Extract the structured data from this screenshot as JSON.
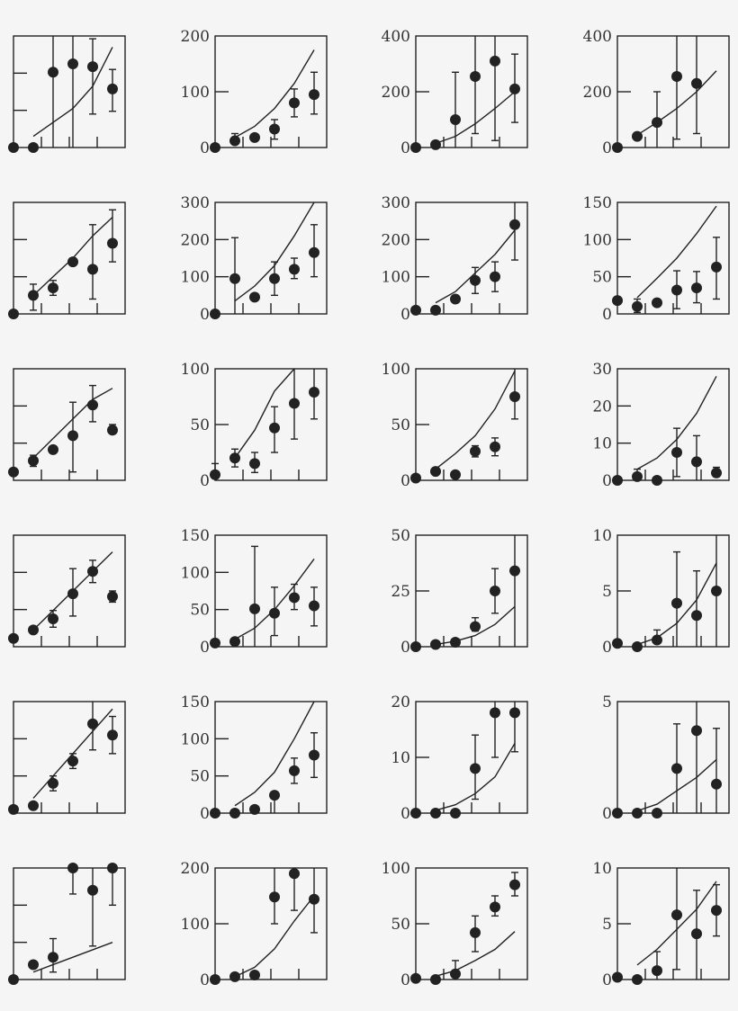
{
  "figure": {
    "rows": 6,
    "cols": 4,
    "background": "#f5f5f5",
    "ink": "#222222"
  },
  "chart_data": [
    {
      "type": "scatter",
      "row": 0,
      "col": 0,
      "yticks_labels": [],
      "ylim": [
        0,
        4
      ],
      "x": [
        0,
        1,
        2,
        3,
        4,
        5
      ],
      "points": [
        0,
        0,
        2.7,
        3.0,
        2.9,
        2.1
      ],
      "err_low": [
        0,
        0,
        0,
        0,
        1.2,
        1.3
      ],
      "err_high": [
        0,
        0,
        4,
        4,
        3.9,
        2.8
      ],
      "curve": [
        null,
        0.4,
        0.9,
        1.4,
        2.2,
        3.6
      ]
    },
    {
      "type": "scatter",
      "row": 0,
      "col": 1,
      "yticks_labels": [
        "0",
        "100",
        "200"
      ],
      "ylim": [
        0,
        200
      ],
      "x": [
        0,
        1,
        2,
        3,
        4,
        5
      ],
      "points": [
        0,
        12,
        18,
        33,
        80,
        95
      ],
      "err_low": [
        0,
        8,
        18,
        15,
        55,
        60
      ],
      "err_high": [
        0,
        25,
        18,
        50,
        105,
        135
      ],
      "curve": [
        null,
        18,
        38,
        70,
        115,
        175
      ]
    },
    {
      "type": "scatter",
      "row": 0,
      "col": 2,
      "yticks_labels": [
        "0",
        "200",
        "400"
      ],
      "ylim": [
        0,
        400
      ],
      "x": [
        0,
        1,
        2,
        3,
        4,
        5
      ],
      "points": [
        0,
        10,
        100,
        255,
        310,
        210
      ],
      "err_low": [
        0,
        10,
        0,
        50,
        25,
        90
      ],
      "err_high": [
        0,
        10,
        270,
        400,
        400,
        335
      ],
      "curve": [
        null,
        15,
        40,
        85,
        140,
        200
      ]
    },
    {
      "type": "scatter",
      "row": 0,
      "col": 3,
      "yticks_labels": [
        "0",
        "200",
        "400"
      ],
      "ylim": [
        0,
        400
      ],
      "x": [
        0,
        1,
        2,
        3,
        4,
        5
      ],
      "points": [
        0,
        40,
        90,
        255,
        230,
        null
      ],
      "err_low": [
        0,
        40,
        0,
        30,
        50,
        null
      ],
      "err_high": [
        0,
        40,
        200,
        400,
        400,
        null
      ],
      "curve": [
        null,
        45,
        90,
        140,
        200,
        275
      ]
    },
    {
      "type": "scatter",
      "row": 1,
      "col": 0,
      "yticks_labels": [],
      "ylim": [
        0,
        3
      ],
      "x": [
        0,
        1,
        2,
        3,
        4,
        5
      ],
      "points": [
        0,
        0.5,
        0.7,
        1.4,
        1.2,
        1.9
      ],
      "err_low": [
        0,
        0.1,
        0.5,
        1.4,
        0.4,
        1.4
      ],
      "err_high": [
        0,
        0.8,
        0.9,
        1.4,
        2.4,
        2.8
      ],
      "curve": [
        null,
        0.5,
        1.0,
        1.5,
        2.1,
        2.6
      ]
    },
    {
      "type": "scatter",
      "row": 1,
      "col": 1,
      "yticks_labels": [
        "0",
        "100",
        "200",
        "300"
      ],
      "ylim": [
        0,
        300
      ],
      "x": [
        0,
        1,
        2,
        3,
        4,
        5
      ],
      "points": [
        0,
        95,
        45,
        95,
        120,
        165
      ],
      "err_low": [
        0,
        0,
        45,
        50,
        95,
        100
      ],
      "err_high": [
        0,
        205,
        45,
        140,
        150,
        240
      ],
      "curve": [
        null,
        35,
        75,
        130,
        210,
        300
      ]
    },
    {
      "type": "scatter",
      "row": 1,
      "col": 2,
      "yticks_labels": [
        "0",
        "100",
        "200",
        "300"
      ],
      "ylim": [
        0,
        300
      ],
      "x": [
        0,
        1,
        2,
        3,
        4,
        5
      ],
      "points": [
        10,
        10,
        40,
        90,
        100,
        240
      ],
      "err_low": [
        10,
        10,
        40,
        55,
        60,
        145
      ],
      "err_high": [
        10,
        10,
        40,
        125,
        140,
        300
      ],
      "curve": [
        null,
        30,
        60,
        110,
        160,
        225
      ]
    },
    {
      "type": "scatter",
      "row": 1,
      "col": 3,
      "yticks_labels": [
        "0",
        "50",
        "100",
        "150"
      ],
      "ylim": [
        0,
        150
      ],
      "x": [
        0,
        1,
        2,
        3,
        4,
        5
      ],
      "points": [
        18,
        10,
        15,
        32,
        35,
        63
      ],
      "err_low": [
        18,
        2,
        15,
        7,
        15,
        20
      ],
      "err_high": [
        18,
        20,
        15,
        58,
        57,
        103
      ],
      "curve": [
        null,
        22,
        48,
        75,
        108,
        145
      ]
    },
    {
      "type": "scatter",
      "row": 2,
      "col": 0,
      "yticks_labels": [],
      "ylim": [
        0,
        4
      ],
      "x": [
        0,
        1,
        2,
        3,
        4,
        5
      ],
      "points": [
        0.3,
        0.7,
        1.1,
        1.6,
        2.7,
        1.8
      ],
      "err_low": [
        0.3,
        0.5,
        1.1,
        0.3,
        2.1,
        1.7
      ],
      "err_high": [
        0.3,
        0.9,
        1.1,
        2.8,
        3.4,
        2.0
      ],
      "curve": [
        null,
        0.8,
        1.5,
        2.2,
        2.9,
        3.3
      ]
    },
    {
      "type": "scatter",
      "row": 2,
      "col": 1,
      "yticks_labels": [
        "0",
        "50",
        "100"
      ],
      "ylim": [
        0,
        100
      ],
      "x": [
        0,
        1,
        2,
        3,
        4,
        5
      ],
      "points": [
        5,
        20,
        15,
        47,
        69,
        79
      ],
      "err_low": [
        0,
        12,
        7,
        25,
        37,
        55
      ],
      "err_high": [
        15,
        28,
        25,
        66,
        100,
        100
      ],
      "curve": [
        null,
        20,
        45,
        80,
        110,
        null
      ]
    },
    {
      "type": "scatter",
      "row": 2,
      "col": 2,
      "yticks_labels": [
        "0",
        "50",
        "100"
      ],
      "ylim": [
        0,
        100
      ],
      "x": [
        0,
        1,
        2,
        3,
        4,
        5
      ],
      "points": [
        2,
        8,
        5,
        26,
        30,
        75
      ],
      "err_low": [
        2,
        8,
        5,
        21,
        22,
        55
      ],
      "err_high": [
        2,
        8,
        5,
        31,
        38,
        100
      ],
      "curve": [
        null,
        10,
        24,
        40,
        64,
        98
      ]
    },
    {
      "type": "scatter",
      "row": 2,
      "col": 3,
      "yticks_labels": [
        "0",
        "10",
        "20",
        "30"
      ],
      "ylim": [
        0,
        30
      ],
      "x": [
        0,
        1,
        2,
        3,
        4,
        5
      ],
      "points": [
        0,
        1,
        0,
        7.5,
        5,
        2
      ],
      "err_low": [
        0,
        0,
        0,
        1,
        0,
        1
      ],
      "err_high": [
        0,
        3,
        0,
        14,
        12,
        3.5
      ],
      "curve": [
        null,
        3,
        6,
        11,
        18,
        28
      ]
    },
    {
      "type": "scatter",
      "row": 3,
      "col": 0,
      "yticks_labels": [],
      "ylim": [
        0,
        4
      ],
      "x": [
        0,
        1,
        2,
        3,
        4,
        5
      ],
      "points": [
        0.3,
        0.6,
        1.0,
        1.9,
        2.7,
        1.8
      ],
      "err_low": [
        0.3,
        0.6,
        0.7,
        1.1,
        2.3,
        1.6
      ],
      "err_high": [
        0.3,
        0.6,
        1.3,
        2.8,
        3.1,
        2.0
      ],
      "curve": [
        null,
        0.6,
        1.3,
        2.0,
        2.7,
        3.4
      ]
    },
    {
      "type": "scatter",
      "row": 3,
      "col": 1,
      "yticks_labels": [
        "0",
        "50",
        "100",
        "150"
      ],
      "ylim": [
        0,
        150
      ],
      "x": [
        0,
        1,
        2,
        3,
        4,
        5
      ],
      "points": [
        5,
        7,
        51,
        45,
        66,
        55
      ],
      "err_low": [
        5,
        7,
        0,
        15,
        50,
        28
      ],
      "err_high": [
        5,
        7,
        135,
        80,
        84,
        80
      ],
      "curve": [
        null,
        10,
        25,
        50,
        82,
        118
      ]
    },
    {
      "type": "scatter",
      "row": 3,
      "col": 2,
      "yticks_labels": [
        "0",
        "25",
        "50"
      ],
      "ylim": [
        0,
        50
      ],
      "x": [
        0,
        1,
        2,
        3,
        4,
        5
      ],
      "points": [
        0,
        1,
        2,
        9,
        25,
        34
      ],
      "err_low": [
        0,
        1,
        2,
        7,
        15,
        0
      ],
      "err_high": [
        0,
        1,
        2,
        13,
        35,
        50
      ],
      "curve": [
        null,
        1,
        2.5,
        5,
        10,
        18
      ]
    },
    {
      "type": "scatter",
      "row": 3,
      "col": 3,
      "yticks_labels": [
        "0",
        "5",
        "10"
      ],
      "ylim": [
        0,
        10
      ],
      "x": [
        0,
        1,
        2,
        3,
        4,
        5
      ],
      "points": [
        0.3,
        0,
        0.6,
        3.9,
        2.8,
        5
      ],
      "err_low": [
        0.3,
        0,
        0.3,
        0,
        0,
        0
      ],
      "err_high": [
        0.3,
        0,
        1.5,
        8.5,
        6.8,
        10
      ],
      "curve": [
        null,
        0.2,
        0.8,
        2.1,
        4.2,
        7.5
      ]
    },
    {
      "type": "scatter",
      "row": 4,
      "col": 0,
      "yticks_labels": [],
      "ylim": [
        0,
        3
      ],
      "x": [
        0,
        1,
        2,
        3,
        4,
        5
      ],
      "points": [
        0.1,
        0.2,
        0.8,
        1.4,
        2.4,
        2.1
      ],
      "err_low": [
        0.1,
        0.2,
        0.6,
        1.2,
        1.7,
        1.6
      ],
      "err_high": [
        0.1,
        0.2,
        1.0,
        1.6,
        3.0,
        2.6
      ],
      "curve": [
        null,
        0.4,
        1.0,
        1.6,
        2.2,
        2.8
      ]
    },
    {
      "type": "scatter",
      "row": 4,
      "col": 1,
      "yticks_labels": [
        "0",
        "50",
        "100",
        "150"
      ],
      "ylim": [
        0,
        150
      ],
      "x": [
        0,
        1,
        2,
        3,
        4,
        5
      ],
      "points": [
        0,
        0,
        5,
        24,
        57,
        78
      ],
      "err_low": [
        0,
        0,
        5,
        0,
        40,
        48
      ],
      "err_high": [
        0,
        0,
        5,
        24,
        74,
        108
      ],
      "curve": [
        null,
        10,
        28,
        55,
        100,
        150
      ]
    },
    {
      "type": "scatter",
      "row": 4,
      "col": 2,
      "yticks_labels": [
        "0",
        "10",
        "20"
      ],
      "ylim": [
        0,
        20
      ],
      "x": [
        0,
        1,
        2,
        3,
        4,
        5
      ],
      "points": [
        0,
        0,
        0,
        8,
        18,
        18
      ],
      "err_low": [
        0,
        0,
        0,
        2.5,
        10,
        11
      ],
      "err_high": [
        0,
        0,
        0,
        14,
        20,
        20
      ],
      "curve": [
        null,
        0.5,
        1.5,
        3.5,
        6.5,
        12.5
      ]
    },
    {
      "type": "scatter",
      "row": 4,
      "col": 3,
      "yticks_labels": [
        "0",
        "5"
      ],
      "ylim": [
        0,
        5
      ],
      "x": [
        0,
        1,
        2,
        3,
        4,
        5
      ],
      "points": [
        0,
        0,
        0,
        2,
        3.7,
        1.3
      ],
      "err_low": [
        0,
        0,
        0,
        0,
        0,
        0
      ],
      "err_high": [
        0,
        0,
        0,
        4,
        5,
        3.8
      ],
      "curve": [
        null,
        0.1,
        0.4,
        1.0,
        1.6,
        2.4
      ]
    },
    {
      "type": "scatter",
      "row": 5,
      "col": 0,
      "yticks_labels": [],
      "ylim": [
        0,
        3
      ],
      "x": [
        0,
        1,
        2,
        3,
        4,
        5
      ],
      "points": [
        0,
        0.4,
        0.6,
        3,
        2.4,
        3
      ],
      "err_low": [
        0,
        0.4,
        0.2,
        2.3,
        0.9,
        2
      ],
      "err_high": [
        0,
        0.4,
        1.1,
        3,
        3,
        3
      ],
      "curve": [
        null,
        0.2,
        0.4,
        0.6,
        0.8,
        1.0
      ]
    },
    {
      "type": "scatter",
      "row": 5,
      "col": 1,
      "yticks_labels": [
        "0",
        "100",
        "200"
      ],
      "ylim": [
        0,
        200
      ],
      "x": [
        0,
        1,
        2,
        3,
        4,
        5
      ],
      "points": [
        0,
        5,
        8,
        148,
        190,
        144
      ],
      "err_low": [
        0,
        5,
        8,
        100,
        124,
        84
      ],
      "err_high": [
        0,
        5,
        8,
        200,
        200,
        200
      ],
      "curve": [
        null,
        5,
        22,
        55,
        105,
        150
      ]
    },
    {
      "type": "scatter",
      "row": 5,
      "col": 2,
      "yticks_labels": [
        "0",
        "50",
        "100"
      ],
      "ylim": [
        0,
        100
      ],
      "x": [
        0,
        1,
        2,
        3,
        4,
        5
      ],
      "points": [
        1,
        0,
        5,
        42,
        65,
        85
      ],
      "err_low": [
        1,
        0,
        0,
        25,
        57,
        75
      ],
      "err_high": [
        1,
        0,
        17,
        57,
        75,
        96
      ],
      "curve": [
        null,
        3,
        8,
        17,
        27,
        43
      ]
    },
    {
      "type": "scatter",
      "row": 5,
      "col": 3,
      "yticks_labels": [
        "0",
        "5",
        "10"
      ],
      "ylim": [
        0,
        10
      ],
      "x": [
        0,
        1,
        2,
        3,
        4,
        5
      ],
      "points": [
        0.2,
        0,
        0.8,
        5.8,
        4.1,
        6.2
      ],
      "err_low": [
        0.2,
        0,
        0,
        0.9,
        0,
        3.9
      ],
      "err_high": [
        0.2,
        0,
        2.5,
        10,
        8,
        8.5
      ],
      "curve": [
        null,
        1.3,
        2.7,
        4.5,
        6.3,
        8.8
      ]
    }
  ]
}
